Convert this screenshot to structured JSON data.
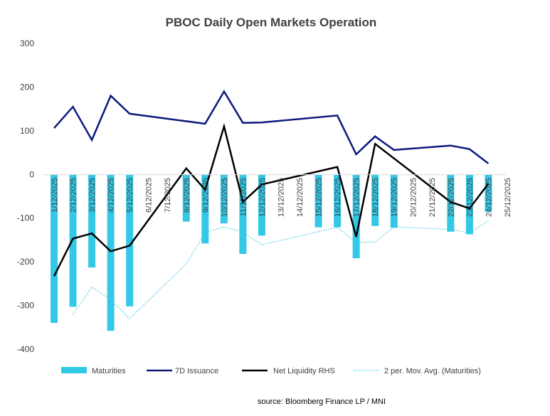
{
  "chart_data": {
    "type": "bar",
    "title": "PBOC Daily Open Markets Operation",
    "source": "source: Bloomberg Finance LP / MNI",
    "categories": [
      "1/12/2025",
      "2/12/2025",
      "3/12/2025",
      "4/12/2025",
      "5/12/2025",
      "6/12/2025",
      "7/12/2025",
      "8/12/2025",
      "9/12/2025",
      "10/12/2025",
      "11/12/2025",
      "12/12/2025",
      "13/12/2025",
      "14/12/2025",
      "15/12/2025",
      "16/12/2025",
      "17/12/2025",
      "18/12/2025",
      "19/12/2025",
      "20/12/2025",
      "21/12/2025",
      "22/12/2025",
      "23/12/2025",
      "24/12/2025",
      "25/12/2025"
    ],
    "ylim": [
      -400,
      300
    ],
    "yticks": [
      300,
      200,
      100,
      0,
      -100,
      -200,
      -300,
      -400
    ],
    "series": [
      {
        "name": "Maturities",
        "kind": "bar",
        "values": [
          -340,
          -303,
          -213,
          -358,
          -302,
          null,
          null,
          -108,
          -158,
          -112,
          -182,
          -140,
          null,
          null,
          -121,
          -121,
          -192,
          -118,
          -122,
          null,
          null,
          -131,
          -137,
          -86,
          null
        ]
      },
      {
        "name": "7D Issuance",
        "kind": "line",
        "values": [
          106,
          155,
          79,
          180,
          139,
          null,
          null,
          null,
          116,
          190,
          118,
          119,
          null,
          null,
          null,
          135,
          46,
          87,
          56,
          null,
          null,
          66,
          58,
          25,
          null
        ]
      },
      {
        "name": "Net Liquidity RHS",
        "kind": "line",
        "values": [
          -233,
          -147,
          -135,
          -176,
          -163,
          null,
          null,
          14,
          -35,
          110,
          -63,
          -23,
          null,
          null,
          null,
          17,
          -143,
          70,
          null,
          null,
          null,
          -63,
          -78,
          -21,
          null
        ]
      },
      {
        "name": "2 per. Mov. Avg. (Maturities)",
        "kind": "dotted-line",
        "values": [
          null,
          -321,
          -258,
          -286,
          -330,
          null,
          null,
          -205,
          -133,
          -120,
          -132,
          -161,
          null,
          null,
          null,
          -121,
          -156,
          -155,
          -120,
          null,
          null,
          -126,
          -134,
          -106,
          null
        ]
      }
    ],
    "colors": {
      "Maturities": "#33c8e6",
      "7D Issuance": "#0c1a7d",
      "Net Liquidity RHS": "#000000",
      "2 per. Mov. Avg. (Maturities)": "#33c8e6"
    },
    "grid": false,
    "legend": "bottom"
  }
}
